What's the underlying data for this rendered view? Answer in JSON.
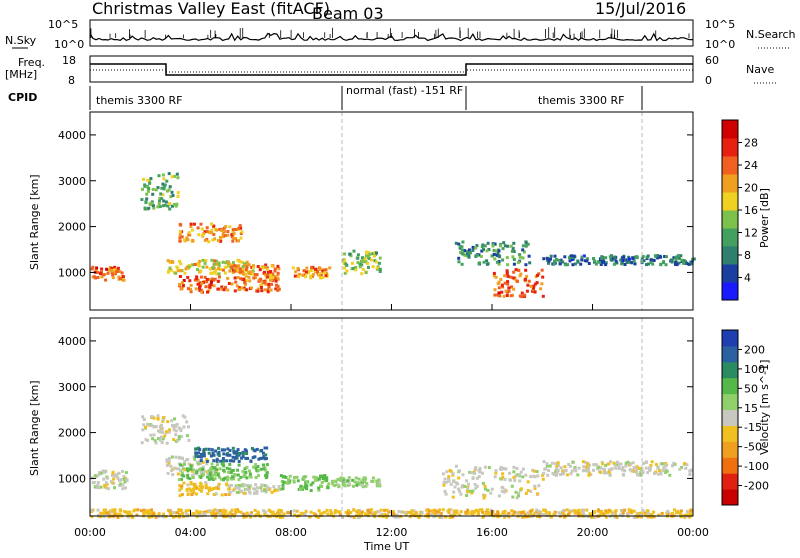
{
  "title": {
    "station": "Christmas Valley East (fitACF)",
    "beam": "Beam 03",
    "date": "15/Jul/2016"
  },
  "status_panels": {
    "nsky_label": "N.Sky",
    "nsearch_label": "N.Search",
    "count_ticks_left": [
      "10^5",
      "10^0"
    ],
    "count_ticks_right": [
      "10^5",
      "10^0"
    ],
    "freq_label": "Freq.",
    "freq_unit": "[MHz]",
    "freq_ticks": [
      "18",
      "8"
    ],
    "nave_label": "Nave",
    "nave_ticks": [
      "60",
      "0"
    ],
    "cpid_label": "CPID",
    "cpid_segments": [
      {
        "label": "themis 3300 RF",
        "start_hour": 0,
        "end_hour": 10
      },
      {
        "label": "normal (fast) -151 RF",
        "start_hour": 10,
        "end_hour": 15
      },
      {
        "label": "themis 3300 RF",
        "start_hour": 15,
        "end_hour": 22
      }
    ]
  },
  "colors": {
    "power_scale": [
      "#1a1aff",
      "#1a3fa0",
      "#2f7f6f",
      "#43a060",
      "#7cc14b",
      "#f0d020",
      "#f0a020",
      "#f06020",
      "#e82010",
      "#d00000"
    ],
    "velocity_scale": [
      "#1f3fb0",
      "#2a5fa0",
      "#2a8a60",
      "#57b84a",
      "#8fd06a",
      "#c8c8c0",
      "#f0c020",
      "#f0a020",
      "#f07010",
      "#e02010",
      "#c80000"
    ]
  },
  "chart_data": [
    {
      "type": "heatmap",
      "name": "power",
      "xlabel": "",
      "ylabel": "Slant Range [km]",
      "colorbar_label": "Power [dB]",
      "colorbar_ticks": [
        "4",
        "8",
        "12",
        "16",
        "20",
        "24",
        "28"
      ],
      "xlim": [
        0,
        24
      ],
      "ylim": [
        180,
        4500
      ],
      "yticks": [
        "1000",
        "2000",
        "3000",
        "4000"
      ],
      "features": [
        {
          "t0": 0.0,
          "t1": 1.3,
          "r0": 850,
          "r1": 1150,
          "value": 24
        },
        {
          "t0": 3.5,
          "t1": 6.0,
          "r0": 1700,
          "r1": 2100,
          "value": 22
        },
        {
          "t0": 3.0,
          "t1": 6.5,
          "r0": 1000,
          "r1": 1300,
          "value": 18
        },
        {
          "t0": 3.5,
          "t1": 7.5,
          "r0": 600,
          "r1": 950,
          "value": 24
        },
        {
          "t0": 5.5,
          "t1": 7.5,
          "r0": 900,
          "r1": 1200,
          "value": 22
        },
        {
          "t0": 8.0,
          "t1": 9.5,
          "r0": 900,
          "r1": 1150,
          "value": 22
        },
        {
          "t0": 2.0,
          "t1": 3.5,
          "r0": 2400,
          "r1": 3200,
          "value": 12
        },
        {
          "t0": 10.0,
          "t1": 11.5,
          "r0": 1000,
          "r1": 1500,
          "value": 14
        },
        {
          "t0": 14.5,
          "t1": 17.5,
          "r0": 1200,
          "r1": 1700,
          "value": 10
        },
        {
          "t0": 16.0,
          "t1": 18.0,
          "r0": 500,
          "r1": 1100,
          "value": 24
        },
        {
          "t0": 18.0,
          "t1": 24.0,
          "r0": 1200,
          "r1": 1400,
          "value": 8
        }
      ]
    },
    {
      "type": "heatmap",
      "name": "velocity",
      "xlabel": "Time UT",
      "ylabel": "Slant Range [km]",
      "colorbar_label": "Velocity [m s^-1]",
      "colorbar_ticks": [
        "200",
        "100",
        "50",
        "15",
        "-15",
        "-50",
        "-100",
        "-200"
      ],
      "xlim": [
        0,
        24
      ],
      "ylim": [
        180,
        4500
      ],
      "xticks": [
        "00:00",
        "04:00",
        "08:00",
        "12:00",
        "16:00",
        "20:00",
        "00:00"
      ],
      "yticks": [
        "1000",
        "2000",
        "3000",
        "4000"
      ],
      "features": [
        {
          "t0": 0.0,
          "t1": 1.5,
          "r0": 800,
          "r1": 1200,
          "value": 0
        },
        {
          "t0": 2.0,
          "t1": 4.0,
          "r0": 1800,
          "r1": 2400,
          "value": 0
        },
        {
          "t0": 3.0,
          "t1": 5.0,
          "r0": 1100,
          "r1": 1500,
          "value": 0
        },
        {
          "t0": 4.0,
          "t1": 7.0,
          "r0": 1400,
          "r1": 1700,
          "value": 150
        },
        {
          "t0": 3.5,
          "t1": 7.0,
          "r0": 1000,
          "r1": 1350,
          "value": 60
        },
        {
          "t0": 3.5,
          "t1": 5.5,
          "r0": 650,
          "r1": 950,
          "value": -40
        },
        {
          "t0": 5.5,
          "t1": 7.5,
          "r0": 700,
          "r1": 900,
          "value": 0
        },
        {
          "t0": 7.5,
          "t1": 9.5,
          "r0": 750,
          "r1": 1100,
          "value": 60
        },
        {
          "t0": 9.5,
          "t1": 11.5,
          "r0": 850,
          "r1": 1050,
          "value": 40
        },
        {
          "t0": 14.0,
          "t1": 18.0,
          "r0": 600,
          "r1": 1300,
          "value": 0
        },
        {
          "t0": 18.0,
          "t1": 24.0,
          "r0": 1100,
          "r1": 1400,
          "value": 0
        },
        {
          "t0": 0.0,
          "t1": 24.0,
          "r0": 180,
          "r1": 350,
          "value": -40
        }
      ]
    }
  ]
}
